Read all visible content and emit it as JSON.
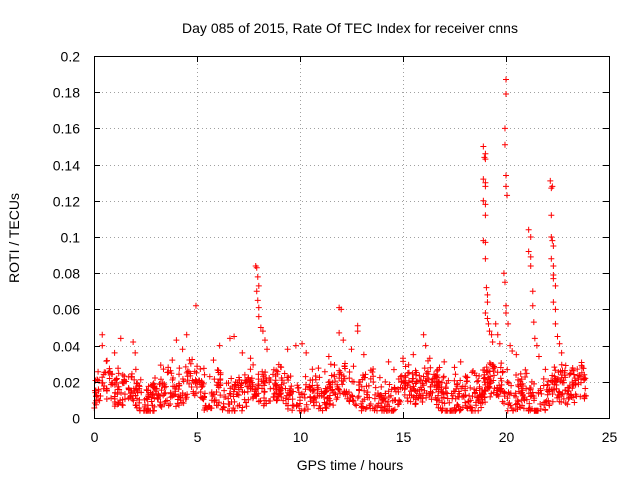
{
  "chart_data": {
    "type": "scatter",
    "title": "Day 085 of 2015, Rate Of TEC Index for receiver cnns",
    "xlabel": "GPS time / hours",
    "ylabel": "ROTI / TECUs",
    "xlim": [
      0,
      25
    ],
    "ylim": [
      0,
      0.2
    ],
    "x_ticks": [
      "0",
      "5",
      "10",
      "15",
      "20",
      "25"
    ],
    "y_ticks": [
      "0",
      "0.02",
      "0.04",
      "0.06",
      "0.08",
      "0.1",
      "0.12",
      "0.14",
      "0.16",
      "0.18",
      "0.2"
    ],
    "grid": true,
    "marker": "+",
    "color": "#ff0000",
    "background_band": {
      "x_range": [
        0,
        23.9
      ],
      "y_range": [
        0.005,
        0.03
      ],
      "density_per_hour": 55
    },
    "series": [
      {
        "name": "ROTI",
        "points": [
          [
            0.4,
            0.046
          ],
          [
            0.4,
            0.04
          ],
          [
            1.0,
            0.036
          ],
          [
            1.3,
            0.044
          ],
          [
            1.9,
            0.042
          ],
          [
            2.0,
            0.036
          ],
          [
            3.6,
            0.028
          ],
          [
            3.8,
            0.032
          ],
          [
            4.0,
            0.043
          ],
          [
            4.3,
            0.038
          ],
          [
            4.5,
            0.046
          ],
          [
            4.7,
            0.03
          ],
          [
            4.95,
            0.062
          ],
          [
            5.8,
            0.032
          ],
          [
            6.1,
            0.04
          ],
          [
            6.6,
            0.044
          ],
          [
            6.8,
            0.045
          ],
          [
            7.2,
            0.036
          ],
          [
            7.6,
            0.033
          ],
          [
            7.85,
            0.084
          ],
          [
            7.9,
            0.083
          ],
          [
            7.95,
            0.078
          ],
          [
            8.0,
            0.073
          ],
          [
            7.9,
            0.07
          ],
          [
            7.95,
            0.065
          ],
          [
            8.0,
            0.061
          ],
          [
            8.0,
            0.056
          ],
          [
            8.1,
            0.05
          ],
          [
            8.2,
            0.048
          ],
          [
            8.3,
            0.043
          ],
          [
            8.4,
            0.038
          ],
          [
            9.4,
            0.038
          ],
          [
            9.8,
            0.04
          ],
          [
            10.1,
            0.041
          ],
          [
            10.3,
            0.036
          ],
          [
            11.4,
            0.034
          ],
          [
            11.9,
            0.061
          ],
          [
            12.0,
            0.06
          ],
          [
            11.9,
            0.047
          ],
          [
            12.1,
            0.043
          ],
          [
            12.5,
            0.038
          ],
          [
            12.8,
            0.051
          ],
          [
            12.8,
            0.048
          ],
          [
            13.1,
            0.035
          ],
          [
            14.3,
            0.031
          ],
          [
            15.0,
            0.033
          ],
          [
            15.5,
            0.035
          ],
          [
            16.0,
            0.046
          ],
          [
            16.1,
            0.04
          ],
          [
            16.3,
            0.033
          ],
          [
            17.0,
            0.031
          ],
          [
            17.5,
            0.028
          ],
          [
            17.8,
            0.031
          ],
          [
            18.4,
            0.026
          ],
          [
            18.9,
            0.15
          ],
          [
            19.0,
            0.146
          ],
          [
            18.95,
            0.144
          ],
          [
            19.0,
            0.143
          ],
          [
            18.9,
            0.132
          ],
          [
            19.0,
            0.13
          ],
          [
            19.0,
            0.128
          ],
          [
            18.9,
            0.12
          ],
          [
            19.0,
            0.118
          ],
          [
            19.0,
            0.112
          ],
          [
            18.9,
            0.098
          ],
          [
            19.0,
            0.097
          ],
          [
            19.0,
            0.088
          ],
          [
            19.05,
            0.072
          ],
          [
            19.1,
            0.068
          ],
          [
            19.1,
            0.064
          ],
          [
            19.0,
            0.058
          ],
          [
            19.1,
            0.055
          ],
          [
            19.15,
            0.052
          ],
          [
            19.2,
            0.048
          ],
          [
            19.3,
            0.046
          ],
          [
            19.35,
            0.042
          ],
          [
            19.5,
            0.052
          ],
          [
            19.6,
            0.046
          ],
          [
            19.7,
            0.041
          ],
          [
            19.9,
            0.08
          ],
          [
            19.95,
            0.075
          ],
          [
            20.0,
            0.187
          ],
          [
            20.0,
            0.179
          ],
          [
            19.95,
            0.16
          ],
          [
            19.95,
            0.151
          ],
          [
            20.0,
            0.134
          ],
          [
            20.0,
            0.128
          ],
          [
            20.05,
            0.123
          ],
          [
            20.0,
            0.062
          ],
          [
            20.0,
            0.058
          ],
          [
            20.1,
            0.052
          ],
          [
            20.2,
            0.04
          ],
          [
            20.3,
            0.037
          ],
          [
            20.5,
            0.035
          ],
          [
            21.1,
            0.104
          ],
          [
            21.2,
            0.1
          ],
          [
            21.1,
            0.092
          ],
          [
            21.2,
            0.089
          ],
          [
            21.2,
            0.084
          ],
          [
            21.3,
            0.07
          ],
          [
            21.3,
            0.062
          ],
          [
            21.35,
            0.053
          ],
          [
            21.4,
            0.044
          ],
          [
            21.5,
            0.04
          ],
          [
            21.6,
            0.034
          ],
          [
            22.15,
            0.131
          ],
          [
            22.2,
            0.127
          ],
          [
            22.25,
            0.128
          ],
          [
            22.2,
            0.112
          ],
          [
            22.2,
            0.1
          ],
          [
            22.25,
            0.098
          ],
          [
            22.3,
            0.095
          ],
          [
            22.2,
            0.088
          ],
          [
            22.3,
            0.084
          ],
          [
            22.3,
            0.079
          ],
          [
            22.3,
            0.077
          ],
          [
            22.4,
            0.073
          ],
          [
            22.3,
            0.064
          ],
          [
            22.4,
            0.06
          ],
          [
            22.4,
            0.052
          ],
          [
            22.5,
            0.045
          ],
          [
            22.6,
            0.041
          ],
          [
            22.7,
            0.036
          ],
          [
            22.9,
            0.029
          ],
          [
            23.3,
            0.024
          ],
          [
            23.6,
            0.023
          ],
          [
            23.8,
            0.021
          ],
          [
            23.8,
            0.022
          ]
        ]
      }
    ]
  }
}
